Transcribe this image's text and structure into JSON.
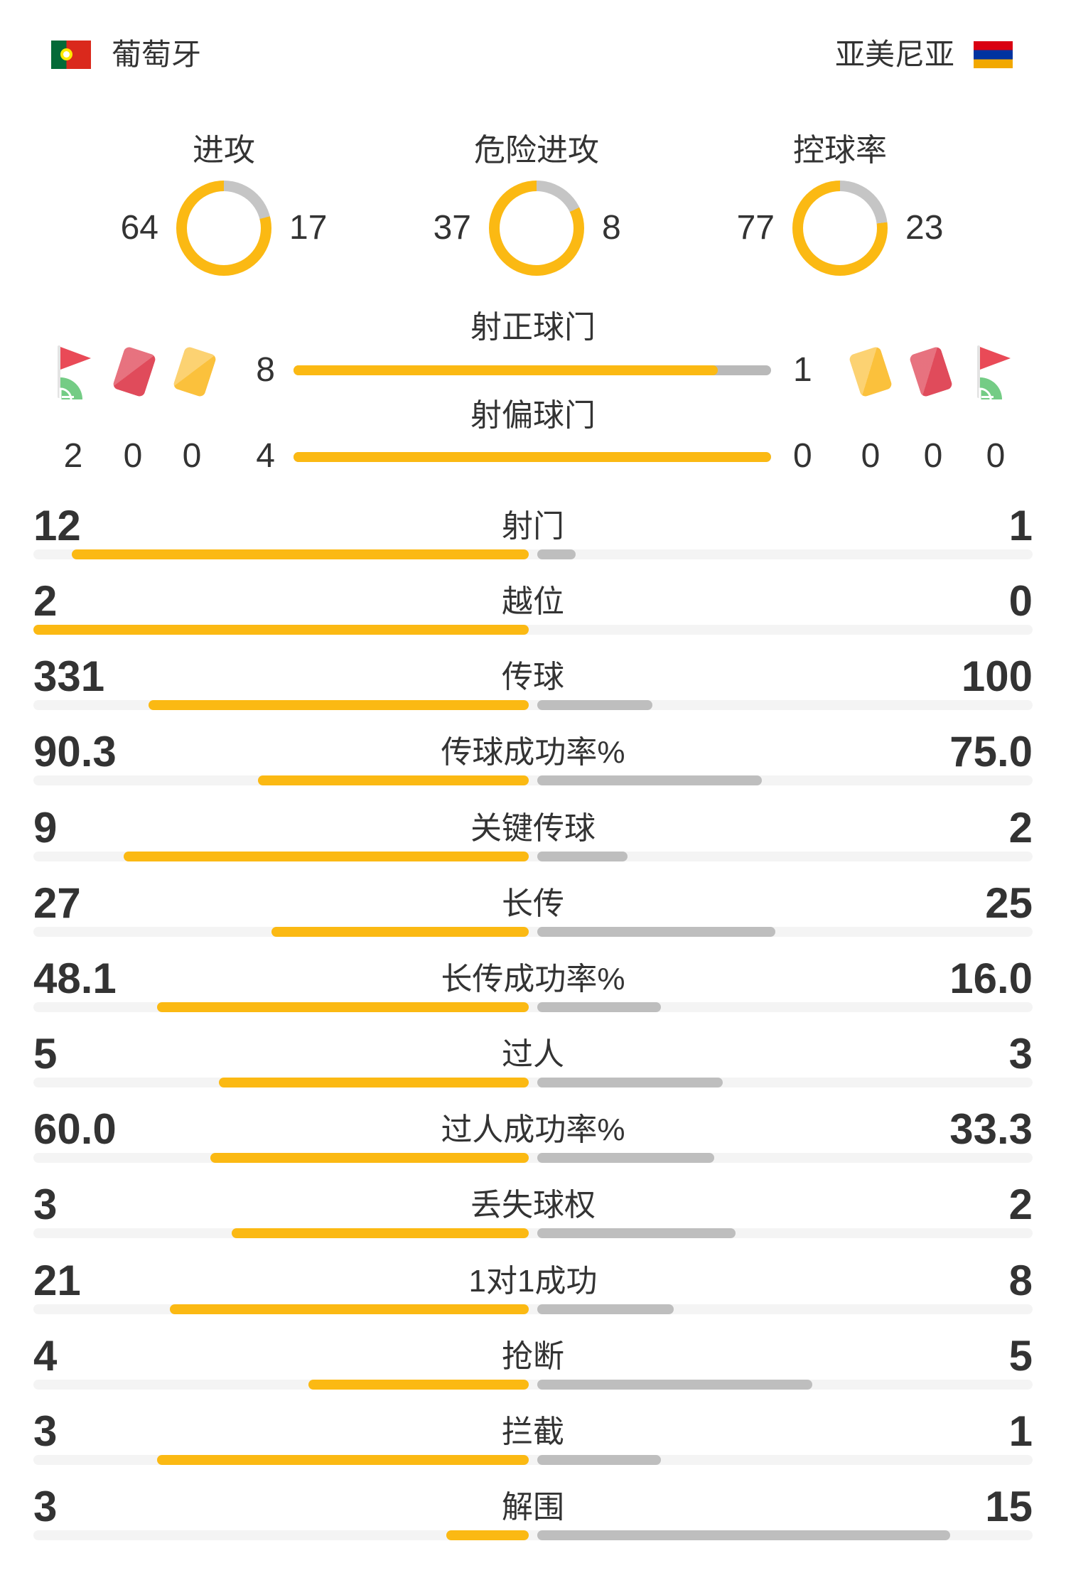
{
  "header": {
    "home": {
      "name": "葡萄牙",
      "flag": "portugal-flag"
    },
    "away": {
      "name": "亚美尼亚",
      "flag": "armenia-flag"
    }
  },
  "donuts": [
    {
      "label": "进攻",
      "home": 64,
      "away": 17
    },
    {
      "label": "危险进攻",
      "home": 37,
      "away": 8
    },
    {
      "label": "控球率",
      "home": 77,
      "away": 23
    }
  ],
  "discipline": {
    "home": [
      {
        "icon": "corner-flag-icon",
        "value": 2
      },
      {
        "icon": "red-card-icon",
        "value": 0
      },
      {
        "icon": "yellow-card-icon",
        "value": 0
      }
    ],
    "away": [
      {
        "icon": "yellow-card-icon",
        "value": 0
      },
      {
        "icon": "red-card-icon",
        "value": 0
      },
      {
        "icon": "corner-flag-icon",
        "value": 0
      }
    ]
  },
  "shots": [
    {
      "label": "射正球门",
      "home": 8,
      "away": 1
    },
    {
      "label": "射偏球门",
      "home": 4,
      "away": 0
    }
  ],
  "stats": [
    {
      "label": "射门",
      "home": "12",
      "away": "1"
    },
    {
      "label": "越位",
      "home": "2",
      "away": "0"
    },
    {
      "label": "传球",
      "home": "331",
      "away": "100"
    },
    {
      "label": "传球成功率%",
      "home": "90.3",
      "away": "75.0"
    },
    {
      "label": "关键传球",
      "home": "9",
      "away": "2"
    },
    {
      "label": "长传",
      "home": "27",
      "away": "25"
    },
    {
      "label": "长传成功率%",
      "home": "48.1",
      "away": "16.0"
    },
    {
      "label": "过人",
      "home": "5",
      "away": "3"
    },
    {
      "label": "过人成功率%",
      "home": "60.0",
      "away": "33.3"
    },
    {
      "label": "丢失球权",
      "home": "3",
      "away": "2"
    },
    {
      "label": "1对1成功",
      "home": "21",
      "away": "8"
    },
    {
      "label": "抢断",
      "home": "4",
      "away": "5"
    },
    {
      "label": "拦截",
      "home": "3",
      "away": "1"
    },
    {
      "label": "解围",
      "home": "3",
      "away": "15"
    }
  ],
  "colors": {
    "yellow": "#FBB913",
    "donut_gray": "#C5C5C5",
    "bar_gray": "#BEBEBE",
    "shot_gray": "#B9B9B9",
    "track": "#F4F4F4",
    "text": "#333333",
    "red_card": "#E04B5B",
    "yellow_card": "#FBC13C",
    "flag_pennant_red": "#E94A57",
    "flag_mound_green": "#74CC85"
  },
  "chart_data": [
    {
      "type": "pie",
      "title": "进攻",
      "categories": [
        "葡萄牙",
        "亚美尼亚"
      ],
      "values": [
        64,
        17
      ],
      "legend_position": "sides"
    },
    {
      "type": "pie",
      "title": "危险进攻",
      "categories": [
        "葡萄牙",
        "亚美尼亚"
      ],
      "values": [
        37,
        8
      ],
      "legend_position": "sides"
    },
    {
      "type": "pie",
      "title": "控球率",
      "categories": [
        "葡萄牙",
        "亚美尼亚"
      ],
      "values": [
        77,
        23
      ],
      "legend_position": "sides"
    },
    {
      "type": "bar",
      "categories": [
        "corners (icon)",
        "red cards (icon)",
        "yellow cards (icon)",
        "射正球门",
        "射偏球门",
        "射门",
        "越位",
        "传球",
        "传球成功率%",
        "关键传球",
        "长传",
        "长传成功率%",
        "过人",
        "过人成功率%",
        "丢失球权",
        "1对1成功",
        "抢断",
        "拦截",
        "解围"
      ],
      "series": [
        {
          "name": "葡萄牙",
          "values": [
            2,
            0,
            0,
            8,
            4,
            12,
            2,
            331,
            90.3,
            9,
            27,
            48.1,
            5,
            60.0,
            3,
            21,
            4,
            3,
            3
          ]
        },
        {
          "name": "亚美尼亚",
          "values": [
            0,
            0,
            0,
            1,
            0,
            1,
            0,
            100,
            75.0,
            2,
            25,
            16.0,
            3,
            33.3,
            2,
            8,
            5,
            1,
            15
          ]
        }
      ],
      "title": "",
      "xlabel": "",
      "ylabel": "",
      "legend_position": "none",
      "grid": false
    }
  ]
}
